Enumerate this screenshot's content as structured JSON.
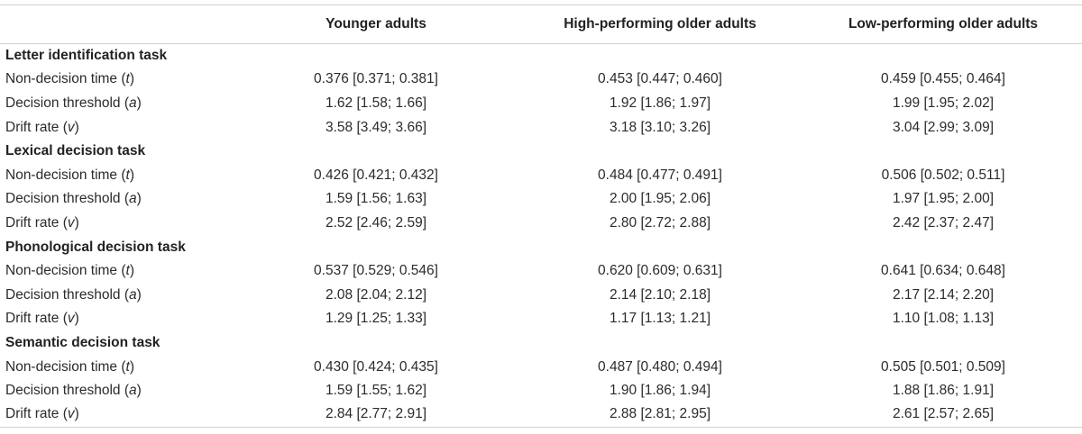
{
  "columns": [
    "",
    "Younger adults",
    "High-performing older adults",
    "Low-performing older adults"
  ],
  "sections": [
    {
      "title": "Letter identification task",
      "rows": [
        {
          "param": "Non-decision time",
          "sym": "t",
          "values": [
            "0.376 [0.371; 0.381]",
            "0.453 [0.447; 0.460]",
            "0.459 [0.455; 0.464]"
          ]
        },
        {
          "param": "Decision threshold",
          "sym": "a",
          "values": [
            "1.62 [1.58; 1.66]",
            "1.92 [1.86; 1.97]",
            "1.99 [1.95; 2.02]"
          ]
        },
        {
          "param": "Drift rate",
          "sym": "v",
          "values": [
            "3.58 [3.49; 3.66]",
            "3.18 [3.10; 3.26]",
            "3.04 [2.99; 3.09]"
          ]
        }
      ]
    },
    {
      "title": "Lexical decision task",
      "rows": [
        {
          "param": "Non-decision time",
          "sym": "t",
          "values": [
            "0.426 [0.421; 0.432]",
            "0.484 [0.477; 0.491]",
            "0.506 [0.502; 0.511]"
          ]
        },
        {
          "param": "Decision threshold",
          "sym": "a",
          "values": [
            "1.59 [1.56; 1.63]",
            "2.00 [1.95; 2.06]",
            "1.97 [1.95; 2.00]"
          ]
        },
        {
          "param": "Drift rate",
          "sym": "v",
          "values": [
            "2.52 [2.46; 2.59]",
            "2.80 [2.72; 2.88]",
            "2.42 [2.37; 2.47]"
          ]
        }
      ]
    },
    {
      "title": "Phonological decision task",
      "rows": [
        {
          "param": "Non-decision time",
          "sym": "t",
          "values": [
            "0.537 [0.529; 0.546]",
            "0.620 [0.609; 0.631]",
            "0.641 [0.634; 0.648]"
          ]
        },
        {
          "param": "Decision threshold",
          "sym": "a",
          "values": [
            "2.08 [2.04; 2.12]",
            "2.14 [2.10; 2.18]",
            "2.17 [2.14; 2.20]"
          ]
        },
        {
          "param": "Drift rate",
          "sym": "v",
          "values": [
            "1.29 [1.25; 1.33]",
            "1.17 [1.13; 1.21]",
            "1.10 [1.08; 1.13]"
          ]
        }
      ]
    },
    {
      "title": "Semantic decision task",
      "rows": [
        {
          "param": "Non-decision time",
          "sym": "t",
          "values": [
            "0.430 [0.424; 0.435]",
            "0.487 [0.480; 0.494]",
            "0.505 [0.501; 0.509]"
          ]
        },
        {
          "param": "Decision threshold",
          "sym": "a",
          "values": [
            "1.59 [1.55; 1.62]",
            "1.90 [1.86; 1.94]",
            "1.88 [1.86; 1.91]"
          ]
        },
        {
          "param": "Drift rate",
          "sym": "v",
          "values": [
            "2.84 [2.77; 2.91]",
            "2.88 [2.81; 2.95]",
            "2.61 [2.57; 2.65]"
          ]
        }
      ]
    }
  ]
}
